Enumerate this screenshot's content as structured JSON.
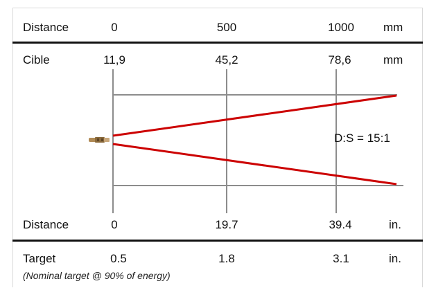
{
  "top_row": {
    "label": "Distance",
    "values": [
      "0",
      "500",
      "1000"
    ],
    "unit": "mm"
  },
  "cible_row": {
    "label": "Cible",
    "values": [
      "11,9",
      "45,2",
      "78,6"
    ],
    "unit": "mm"
  },
  "ratio_label": "D:S = 15:1",
  "bottom_distance_row": {
    "label": "Distance",
    "values": [
      "0",
      "19.7",
      "39.4"
    ],
    "unit": "in."
  },
  "target_row": {
    "label": "Target",
    "values": [
      "0.5",
      "1.8",
      "3.1"
    ],
    "unit": "in."
  },
  "note": "(Nominal target @ 90% of energy)",
  "colors": {
    "beam": "#cc0000",
    "grid": "#8c8c8c",
    "rule": "#111111",
    "sensor": "#b08a55"
  }
}
